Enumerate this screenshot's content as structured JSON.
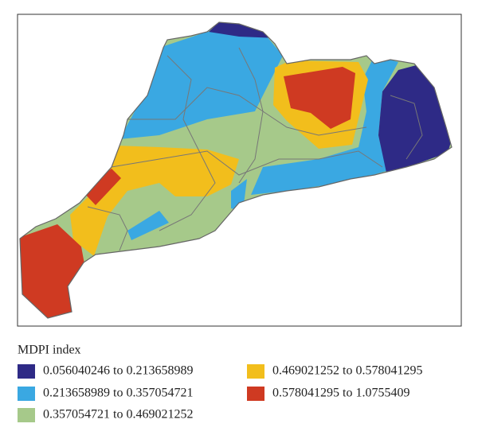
{
  "legend": {
    "title": "MDPI index",
    "items": [
      {
        "label": "0.056040246 to 0.213658989",
        "color": "#2e2a86"
      },
      {
        "label": "0.213658989 to 0.357054721",
        "color": "#3aa8e2"
      },
      {
        "label": "0.357054721 to 0.469021252",
        "color": "#a6c98a"
      },
      {
        "label": "0.469021252 to 0.578041295",
        "color": "#f2be1c"
      },
      {
        "label": "0.578041295 to 1.0755409",
        "color": "#cf3a22"
      }
    ]
  }
}
